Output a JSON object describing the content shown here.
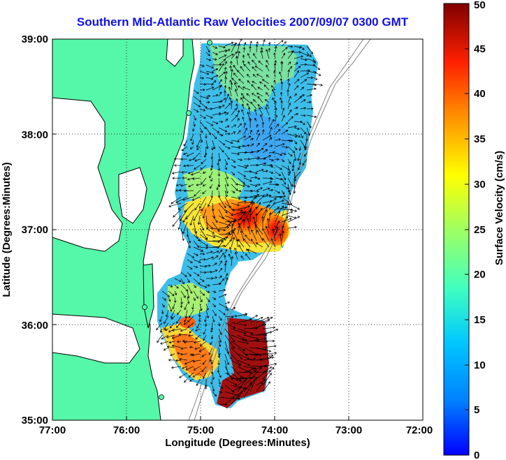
{
  "map": {
    "title": "Southern Mid-Atlantic Raw Velocities 2007/09/07 0300 GMT",
    "xlabel": "Longitude (Degrees:Minutes)",
    "ylabel": "Latitude (Degrees:Minutes)",
    "x_ticks": [
      "77:00",
      "76:00",
      "75:00",
      "74:00",
      "73:00",
      "72:00"
    ],
    "y_ticks": [
      "39:00",
      "38:00",
      "37:00",
      "36:00",
      "35:00"
    ],
    "land_color": "#55f7a8",
    "coast_color": "#000000"
  },
  "colorbar": {
    "label": "Surface Velocity (cm/s)",
    "ticks": [
      "0",
      "5",
      "10",
      "15",
      "20",
      "25",
      "30",
      "35",
      "40",
      "45",
      "50"
    ],
    "min": 0,
    "max": 50,
    "colormap": "jet"
  },
  "chart_data": {
    "type": "heatmap",
    "title": "Southern Mid-Atlantic Raw Velocities 2007/09/07 0300 GMT",
    "xlabel": "Longitude (Degrees:Minutes)",
    "ylabel": "Latitude (Degrees:Minutes)",
    "xlim": [
      "77:00",
      "72:00"
    ],
    "ylim": [
      "35:00",
      "39:00"
    ],
    "value_label": "Surface Velocity (cm/s)",
    "value_range": [
      0,
      50
    ],
    "grid": true
  }
}
